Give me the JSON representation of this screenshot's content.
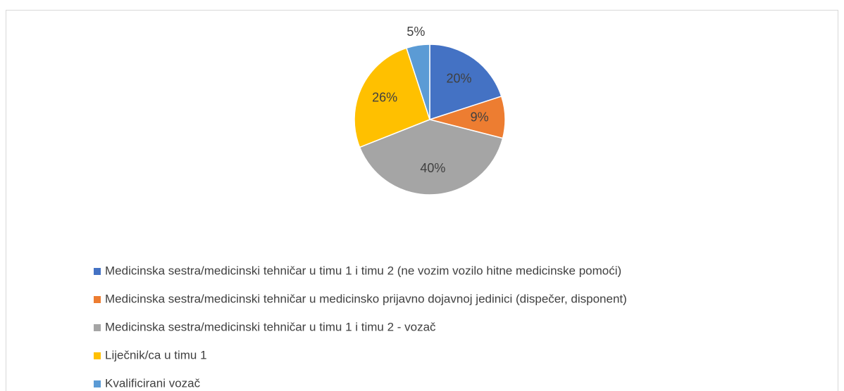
{
  "chart_data": {
    "type": "pie",
    "categories": [
      "Medicinska sestra/medicinski tehničar u timu 1 i timu 2 (ne vozim vozilo hitne medicinske pomoći)",
      "Medicinska sestra/medicinski tehničar u medicinsko prijavno dojavnoj jedinici (dispečer, disponent)",
      "Medicinska sestra/medicinski tehničar u timu 1 i timu 2 - vozač",
      "Liječnik/ca u timu 1",
      "Kvalificirani vozač"
    ],
    "values": [
      20,
      9,
      40,
      26,
      5
    ],
    "value_labels": [
      "20%",
      "9%",
      "40%",
      "26%",
      "5%"
    ],
    "colors": [
      "#4472c4",
      "#ed7d31",
      "#a5a5a5",
      "#ffc000",
      "#5b9bd5"
    ],
    "legend": "bottom"
  }
}
